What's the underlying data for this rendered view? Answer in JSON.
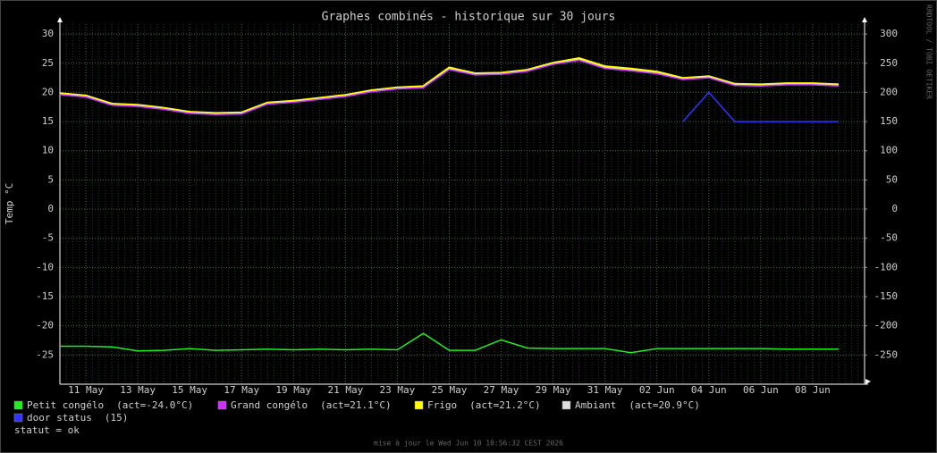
{
  "chart_data": {
    "type": "line",
    "title": "Graphes combinés - historique sur 30 jours",
    "y_label": "Temp °C",
    "side_text": "RRDTOOL / TOBI OETIKER",
    "footer": "mise à jour le Wed Jun 10 10:56:32 CEST 2026",
    "status": "statut = ok",
    "categories": [
      null,
      "11 May",
      null,
      "13 May",
      null,
      "15 May",
      null,
      "17 May",
      null,
      "19 May",
      null,
      "21 May",
      null,
      "23 May",
      null,
      "25 May",
      null,
      "27 May",
      null,
      "29 May",
      null,
      "31 May",
      null,
      "02 Jun",
      null,
      "04 Jun",
      null,
      "06 Jun",
      null,
      "08 Jun",
      null
    ],
    "ylim": [
      -30,
      31.7
    ],
    "yticks": [
      30,
      25,
      20,
      15,
      10,
      5,
      0,
      -5,
      -10,
      -15,
      -20,
      -25
    ],
    "y2lim": [
      -300,
      317
    ],
    "y2ticks": [
      300,
      250,
      200,
      150,
      100,
      50,
      0,
      -50,
      -100,
      -150,
      -200,
      -250
    ],
    "grid": true,
    "series": [
      {
        "name": "Petit congélo",
        "legend_note": "(act=-24.0°C)",
        "color": "#22ee22",
        "values": [
          -23.5,
          -23.5,
          -23.6,
          -24.3,
          -24.2,
          -23.9,
          -24.2,
          -24.1,
          -24.0,
          -24.1,
          -24.0,
          -24.1,
          -24.0,
          -24.1,
          -21.3,
          -24.2,
          -24.2,
          -22.4,
          -23.8,
          -23.9,
          -23.9,
          -23.9,
          -24.6,
          -23.9,
          -23.9,
          -23.9,
          -23.9,
          -23.9,
          -24.0,
          -24.0,
          -24.0
        ]
      },
      {
        "name": "Grand congélo",
        "legend_note": "(act=21.1°C)",
        "color": "#cc33ff",
        "values": [
          19.6,
          19.2,
          17.8,
          17.6,
          17.1,
          16.4,
          16.2,
          16.3,
          18.0,
          18.3,
          18.8,
          19.3,
          20.1,
          20.6,
          20.8,
          23.9,
          23.0,
          23.1,
          23.6,
          24.8,
          25.5,
          24.1,
          23.7,
          23.2,
          22.2,
          22.5,
          21.2,
          21.1,
          21.3,
          21.3,
          21.1
        ]
      },
      {
        "name": "Frigo",
        "legend_note": "(act=21.2°C)",
        "color": "#ffff00",
        "values": [
          19.8,
          19.4,
          18.0,
          17.8,
          17.3,
          16.6,
          16.4,
          16.5,
          18.2,
          18.5,
          19.0,
          19.5,
          20.3,
          20.8,
          21.0,
          24.2,
          23.2,
          23.3,
          23.8,
          25.0,
          25.8,
          24.4,
          24.0,
          23.5,
          22.4,
          22.7,
          21.4,
          21.3,
          21.5,
          21.5,
          21.3
        ]
      },
      {
        "name": "Ambiant",
        "legend_note": "(act=20.9°C)",
        "color": "#dddddd",
        "values": [
          19.7,
          19.3,
          17.9,
          17.7,
          17.2,
          16.5,
          16.3,
          16.4,
          18.1,
          18.4,
          18.9,
          19.4,
          20.2,
          20.7,
          20.9,
          24.0,
          23.1,
          23.2,
          23.7,
          24.9,
          25.6,
          24.2,
          23.8,
          23.3,
          22.3,
          22.6,
          21.3,
          21.2,
          21.4,
          21.4,
          21.2
        ]
      },
      {
        "name": "door status",
        "legend_note": "(15)",
        "color": "#3333ff",
        "values": [
          null,
          null,
          null,
          null,
          null,
          null,
          null,
          null,
          null,
          null,
          null,
          null,
          null,
          null,
          null,
          null,
          null,
          null,
          null,
          null,
          null,
          null,
          null,
          null,
          15,
          20,
          15,
          15,
          15,
          15,
          15
        ]
      }
    ]
  }
}
